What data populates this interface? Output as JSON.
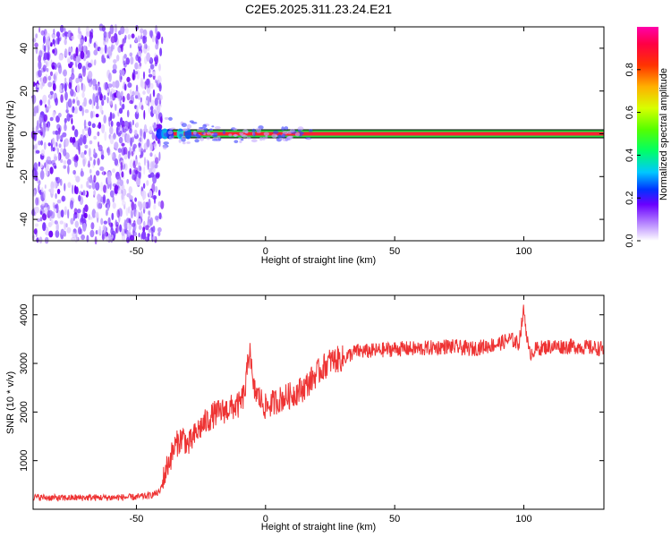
{
  "title": "C2E5.2025.311.23.24.E21",
  "colors": {
    "snr_line": "#ee3333",
    "spec_core": "#ff2233",
    "spec_band": "#22dd44",
    "scatter": "#7a22ff"
  },
  "chart_data": [
    {
      "type": "heatmap",
      "title": "C2E5.2025.311.23.24.E21",
      "xlabel": "Height of straight line (km)",
      "ylabel": "Frequency (Hz)",
      "xlim": [
        -90,
        131
      ],
      "ylim": [
        -50,
        50
      ],
      "xticks": [
        -50,
        0,
        50,
        100
      ],
      "yticks": [
        -40,
        -20,
        0,
        20,
        40
      ],
      "grid": false,
      "colorbar": {
        "label": "Normalized spectral amplitude",
        "range": [
          0,
          1
        ],
        "ticks": [
          0.0,
          0.2,
          0.4,
          0.6,
          0.8
        ]
      },
      "features": {
        "noise_region_x": [
          -90,
          -40
        ],
        "signal_line_frequency": 0,
        "signal_start_x": -40
      }
    },
    {
      "type": "line",
      "xlabel": "Height of straight line (km)",
      "ylabel": "SNR (10 * v/v)",
      "xlim": [
        -90,
        131
      ],
      "ylim": [
        0,
        4400
      ],
      "xticks": [
        -50,
        0,
        50,
        100
      ],
      "yticks": [
        1000,
        2000,
        3000,
        4000
      ],
      "grid": false,
      "series": [
        {
          "x": [
            -90,
            -80,
            -70,
            -60,
            -50,
            -45,
            -41,
            -38,
            -35,
            -32,
            -30,
            -27,
            -25,
            -20,
            -15,
            -10,
            -8,
            -6,
            -5,
            0,
            5,
            10,
            15,
            20,
            25,
            30,
            35,
            40,
            50,
            60,
            70,
            80,
            90,
            95,
            98,
            100,
            102,
            105,
            110,
            120,
            131
          ],
          "values": [
            250,
            230,
            240,
            240,
            250,
            280,
            350,
            900,
            1300,
            1500,
            1300,
            1550,
            1700,
            1950,
            2050,
            2150,
            2400,
            3400,
            2500,
            2100,
            2250,
            2350,
            2500,
            2800,
            3050,
            3100,
            3250,
            3250,
            3300,
            3300,
            3350,
            3300,
            3400,
            3500,
            3400,
            4100,
            3200,
            3300,
            3350,
            3350,
            3300
          ]
        }
      ]
    }
  ]
}
